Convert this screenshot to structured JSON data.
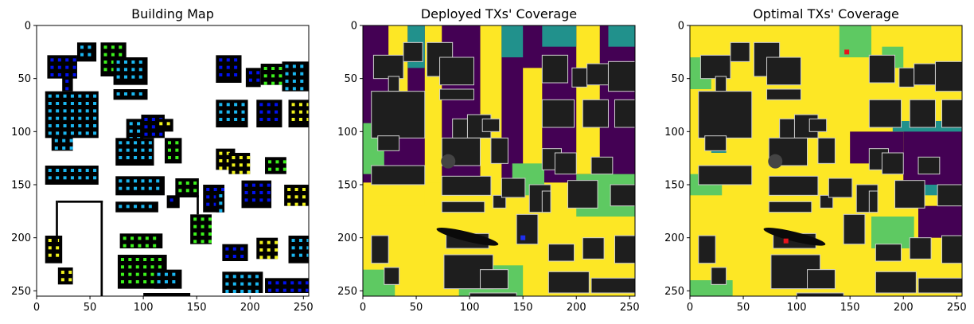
{
  "chart_data": [
    {
      "type": "heatmap",
      "title": "Building Map",
      "xlim": [
        0,
        255
      ],
      "ylim": [
        255,
        0
      ],
      "xticks": [
        0,
        50,
        100,
        150,
        200,
        250
      ],
      "yticks": [
        0,
        50,
        100,
        150,
        200,
        250
      ],
      "grid": false,
      "background": "#ffffff",
      "colors": {
        "building": "#000000",
        "marker_blue": "#0011ee",
        "marker_cyan": "#1ab6f0",
        "marker_green": "#3cf21c",
        "marker_yellow": "#f0f21c"
      }
    },
    {
      "type": "heatmap",
      "title": "Deployed TXs' Coverage",
      "xlim": [
        0,
        255
      ],
      "ylim": [
        255,
        0
      ],
      "xticks": [
        0,
        50,
        100,
        150,
        200,
        250
      ],
      "yticks": [
        0,
        50,
        100,
        150,
        200,
        250
      ],
      "grid": false,
      "transmitters": [
        [
          150,
          200
        ]
      ],
      "colors": {
        "high": "#fde725",
        "mid": "#5ec962",
        "low": "#21918c",
        "none": "#440154",
        "building": "#1e1e1e",
        "tx": "#1e2ff0"
      }
    },
    {
      "type": "heatmap",
      "title": "Optimal TXs' Coverage",
      "xlim": [
        0,
        255
      ],
      "ylim": [
        255,
        0
      ],
      "xticks": [
        0,
        50,
        100,
        150,
        200,
        250
      ],
      "yticks": [
        0,
        50,
        100,
        150,
        200,
        250
      ],
      "grid": false,
      "transmitters": [
        [
          90,
          203
        ],
        [
          147,
          25
        ]
      ],
      "colors": {
        "high": "#fde725",
        "mid": "#5ec962",
        "low": "#21918c",
        "none": "#440154",
        "building": "#1e1e1e",
        "tx": "#e8141c"
      }
    }
  ]
}
